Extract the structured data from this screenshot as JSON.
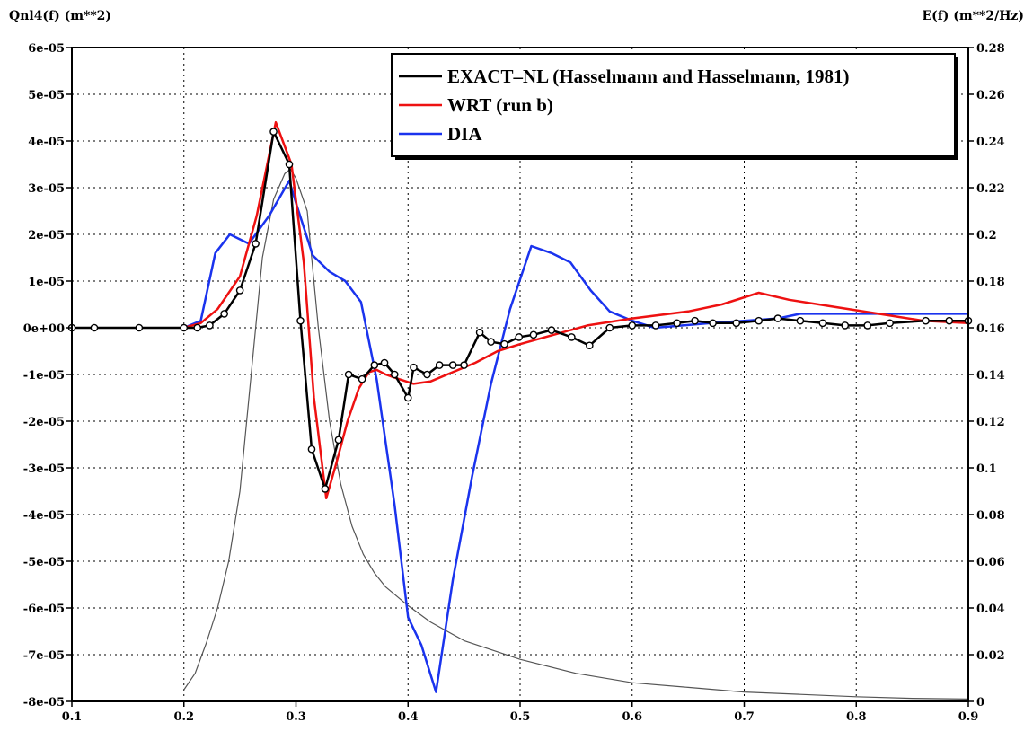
{
  "chart_data": {
    "type": "line",
    "y_left_label": "Qnl4(f) (m**2)",
    "y_right_label": "E(f) (m**2/Hz)",
    "xlim": [
      0.1,
      0.9
    ],
    "ylim_left": [
      -8e-05,
      6e-05
    ],
    "ylim_right": [
      0,
      0.28
    ],
    "grid": true,
    "legend_position": "top-right",
    "x_ticks": [
      "0.1",
      "0.2",
      "0.3",
      "0.4",
      "0.5",
      "0.6",
      "0.7",
      "0.8",
      "0.9"
    ],
    "y_left_ticks": [
      "6e-05",
      "5e-05",
      "4e-05",
      "3e-05",
      "2e-05",
      "1e-05",
      "0e+00",
      "-1e-05",
      "-2e-05",
      "-3e-05",
      "-4e-05",
      "-5e-05",
      "-6e-05",
      "-7e-05",
      "-8e-05"
    ],
    "y_right_ticks": [
      "0.28",
      "0.26",
      "0.24",
      "0.22",
      "0.2",
      "0.18",
      "0.16",
      "0.14",
      "0.12",
      "0.1",
      "0.08",
      "0.06",
      "0.04",
      "0.02",
      "0"
    ],
    "series": [
      {
        "name": "EXACT–NL (Hasselmann and Hasselmann, 1981)",
        "color": "#000000",
        "axis": "left",
        "markers": true,
        "x": [
          0.1,
          0.12,
          0.16,
          0.2,
          0.212,
          0.223,
          0.236,
          0.25,
          0.264,
          0.28,
          0.294,
          0.304,
          0.314,
          0.326,
          0.338,
          0.347,
          0.359,
          0.37,
          0.379,
          0.388,
          0.4,
          0.405,
          0.417,
          0.428,
          0.44,
          0.45,
          0.464,
          0.474,
          0.486,
          0.499,
          0.512,
          0.528,
          0.546,
          0.562,
          0.58,
          0.6,
          0.621,
          0.64,
          0.656,
          0.672,
          0.693,
          0.713,
          0.73,
          0.75,
          0.77,
          0.79,
          0.81,
          0.83,
          0.862,
          0.883,
          0.9
        ],
        "y": [
          0.0,
          0.0,
          0.0,
          0.0,
          0.0,
          5e-07,
          3e-06,
          8e-06,
          1.8e-05,
          4.2e-05,
          3.5e-05,
          1.5e-06,
          -2.6e-05,
          -3.45e-05,
          -2.4e-05,
          -1e-05,
          -1.1e-05,
          -8e-06,
          -7.5e-06,
          -1e-05,
          -1.5e-05,
          -8.5e-06,
          -1e-05,
          -8e-06,
          -8e-06,
          -8e-06,
          -1e-06,
          -3e-06,
          -3.5e-06,
          -2e-06,
          -1.5e-06,
          -5e-07,
          -2e-06,
          -3.8e-06,
          0.0,
          5e-07,
          5e-07,
          1e-06,
          1.5e-06,
          1e-06,
          1e-06,
          1.5e-06,
          2e-06,
          1.5e-06,
          1e-06,
          5e-07,
          5e-07,
          1e-06,
          1.5e-06,
          1.5e-06,
          1.5e-06
        ]
      },
      {
        "name": "WRT (run b)",
        "color": "#ee1111",
        "axis": "left",
        "markers": false,
        "x": [
          0.2,
          0.215,
          0.23,
          0.25,
          0.265,
          0.282,
          0.296,
          0.307,
          0.316,
          0.327,
          0.336,
          0.346,
          0.356,
          0.365,
          0.372,
          0.38,
          0.392,
          0.405,
          0.42,
          0.44,
          0.46,
          0.48,
          0.5,
          0.53,
          0.56,
          0.6,
          0.65,
          0.68,
          0.713,
          0.74,
          0.78,
          0.82,
          0.86,
          0.9
        ],
        "y": [
          0.0,
          1e-06,
          4e-06,
          1.1e-05,
          2.4e-05,
          4.4e-05,
          3.5e-05,
          1.4e-05,
          -1.5e-05,
          -3.65e-05,
          -2.9e-05,
          -2e-05,
          -1.3e-05,
          -9.5e-06,
          -9e-06,
          -1e-05,
          -1.1e-05,
          -1.2e-05,
          -1.15e-05,
          -9.5e-06,
          -7.5e-06,
          -5e-06,
          -3.5e-06,
          -1.5e-06,
          5e-07,
          2e-06,
          3.5e-06,
          5e-06,
          7.5e-06,
          6e-06,
          4.5e-06,
          3e-06,
          1.5e-06,
          1e-06
        ]
      },
      {
        "name": "DIA",
        "color": "#1a33ee",
        "axis": "left",
        "markers": false,
        "x": [
          0.2,
          0.215,
          0.228,
          0.241,
          0.258,
          0.276,
          0.294,
          0.301,
          0.315,
          0.33,
          0.344,
          0.358,
          0.372,
          0.388,
          0.4,
          0.412,
          0.425,
          0.44,
          0.457,
          0.474,
          0.491,
          0.51,
          0.528,
          0.545,
          0.563,
          0.58,
          0.6,
          0.62,
          0.645,
          0.67,
          0.7,
          0.73,
          0.75,
          0.78,
          0.81,
          0.85,
          0.9
        ],
        "y": [
          0.0,
          1.5e-06,
          1.6e-05,
          2e-05,
          1.8e-05,
          2.4e-05,
          3.15e-05,
          2.6e-05,
          1.55e-05,
          1.2e-05,
          1e-05,
          5.5e-06,
          -1.1e-05,
          -3.8e-05,
          -6.2e-05,
          -6.8e-05,
          -7.8e-05,
          -5.4e-05,
          -3.2e-05,
          -1.2e-05,
          4e-06,
          1.75e-05,
          1.6e-05,
          1.4e-05,
          8e-06,
          3.5e-06,
          1.5e-06,
          0.0,
          5e-07,
          1e-06,
          1.5e-06,
          2e-06,
          3e-06,
          3e-06,
          3e-06,
          3e-06,
          3e-06
        ]
      },
      {
        "name": "",
        "color": "#555555",
        "axis": "right",
        "markers": false,
        "thin": true,
        "x": [
          0.2,
          0.21,
          0.22,
          0.23,
          0.24,
          0.25,
          0.26,
          0.27,
          0.28,
          0.29,
          0.295,
          0.3,
          0.31,
          0.32,
          0.33,
          0.34,
          0.35,
          0.36,
          0.37,
          0.38,
          0.4,
          0.42,
          0.45,
          0.5,
          0.55,
          0.6,
          0.65,
          0.7,
          0.75,
          0.8,
          0.85,
          0.9
        ],
        "y": [
          0.005,
          0.012,
          0.025,
          0.04,
          0.06,
          0.09,
          0.14,
          0.19,
          0.215,
          0.226,
          0.228,
          0.224,
          0.21,
          0.16,
          0.12,
          0.093,
          0.075,
          0.063,
          0.055,
          0.049,
          0.041,
          0.034,
          0.026,
          0.018,
          0.012,
          0.008,
          0.006,
          0.004,
          0.003,
          0.002,
          0.0013,
          0.001
        ]
      }
    ]
  }
}
